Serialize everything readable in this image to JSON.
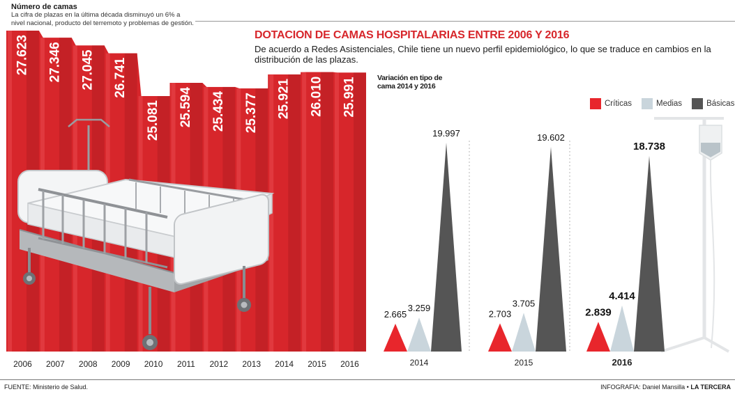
{
  "header": {
    "title": "Número de camas",
    "description": "La cifra de plazas en la última década disminuyó un 6% a nivel nacional, producto del terremoto y problemas de gestión."
  },
  "main": {
    "title": "DOTACION DE CAMAS HOSPITALARIAS ENTRE 2006 Y 2016",
    "subtitle": "De acuerdo a Redes Asistenciales, Chile tiene un nuevo perfil epidemiológico, lo que se traduce en cambios en la distribución de las plazas."
  },
  "variation": {
    "title": "Variación en tipo de cama 2014 y 2016"
  },
  "legend": [
    {
      "label": "Críticas",
      "color": "#e8262c"
    },
    {
      "label": "Medias",
      "color": "#c9d5dc"
    },
    {
      "label": "Básicas",
      "color": "#555555"
    }
  ],
  "footer": {
    "source": "FUENTE: Ministerio de Salud.",
    "credit_prefix": "INFOGRAFIA: Daniel Mansilla • ",
    "credit_brand": "LA TERCERA"
  },
  "colors": {
    "accent_red": "#e8262c",
    "curtain_red": "#d7262b",
    "bed_gray": "#b9bcbf"
  },
  "chart_data": [
    {
      "type": "bar",
      "title": "Número de camas",
      "categories": [
        "2006",
        "2007",
        "2008",
        "2009",
        "2010",
        "2011",
        "2012",
        "2013",
        "2014",
        "2015",
        "2016"
      ],
      "values": [
        27623,
        27346,
        27045,
        26741,
        25081,
        25594,
        25434,
        25377,
        25921,
        26010,
        25991
      ],
      "value_labels": [
        "27.623",
        "27.346",
        "27.045",
        "26.741",
        "25.081",
        "25.594",
        "25.434",
        "25.377",
        "25.921",
        "26.010",
        "25.991"
      ],
      "ylim": [
        0,
        27623
      ]
    },
    {
      "type": "bar",
      "title": "Variación en tipo de cama 2014 y 2016",
      "categories": [
        "2014",
        "2015",
        "2016"
      ],
      "series": [
        {
          "name": "Críticas",
          "values": [
            2665,
            2703,
            2839
          ],
          "labels": [
            "2.665",
            "2.703",
            "2.839"
          ]
        },
        {
          "name": "Medias",
          "values": [
            3259,
            3705,
            4414
          ],
          "labels": [
            "3.259",
            "3.705",
            "4.414"
          ]
        },
        {
          "name": "Básicas",
          "values": [
            19997,
            19602,
            18738
          ],
          "labels": [
            "19.997",
            "19.602",
            "18.738"
          ]
        }
      ],
      "ylim": [
        0,
        19997
      ],
      "legend": "top-right"
    }
  ]
}
